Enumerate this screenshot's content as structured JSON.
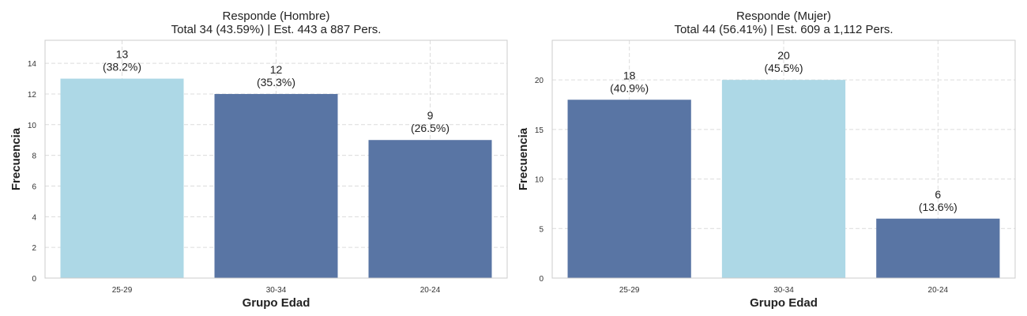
{
  "chart_data": [
    {
      "type": "bar",
      "title_line1": "Responde (Hombre)",
      "title_line2": "Total 34 (43.59%) | Est. 443 a 887 Pers.",
      "xlabel": "Grupo Edad",
      "ylabel": "Frecuencia",
      "categories": [
        "25-29",
        "30-34",
        "20-24"
      ],
      "values": [
        13,
        12,
        9
      ],
      "percent_labels": [
        "(38.2%)",
        "(35.3%)",
        "(26.5%)"
      ],
      "bar_colors": [
        "#add8e6",
        "#5975a4",
        "#5975a4"
      ],
      "ylim": [
        0,
        15.5
      ],
      "yticks": [
        0,
        2,
        4,
        6,
        8,
        10,
        12,
        14
      ],
      "grid": true
    },
    {
      "type": "bar",
      "title_line1": "Responde (Mujer)",
      "title_line2": "Total 44 (56.41%) | Est. 609 a 1,112 Pers.",
      "xlabel": "Grupo Edad",
      "ylabel": "Frecuencia",
      "categories": [
        "25-29",
        "30-34",
        "20-24"
      ],
      "values": [
        18,
        20,
        6
      ],
      "percent_labels": [
        "(40.9%)",
        "(45.5%)",
        "(13.6%)"
      ],
      "bar_colors": [
        "#5975a4",
        "#add8e6",
        "#5975a4"
      ],
      "ylim": [
        0,
        24
      ],
      "yticks": [
        0,
        5,
        10,
        15,
        20
      ],
      "grid": true
    }
  ]
}
